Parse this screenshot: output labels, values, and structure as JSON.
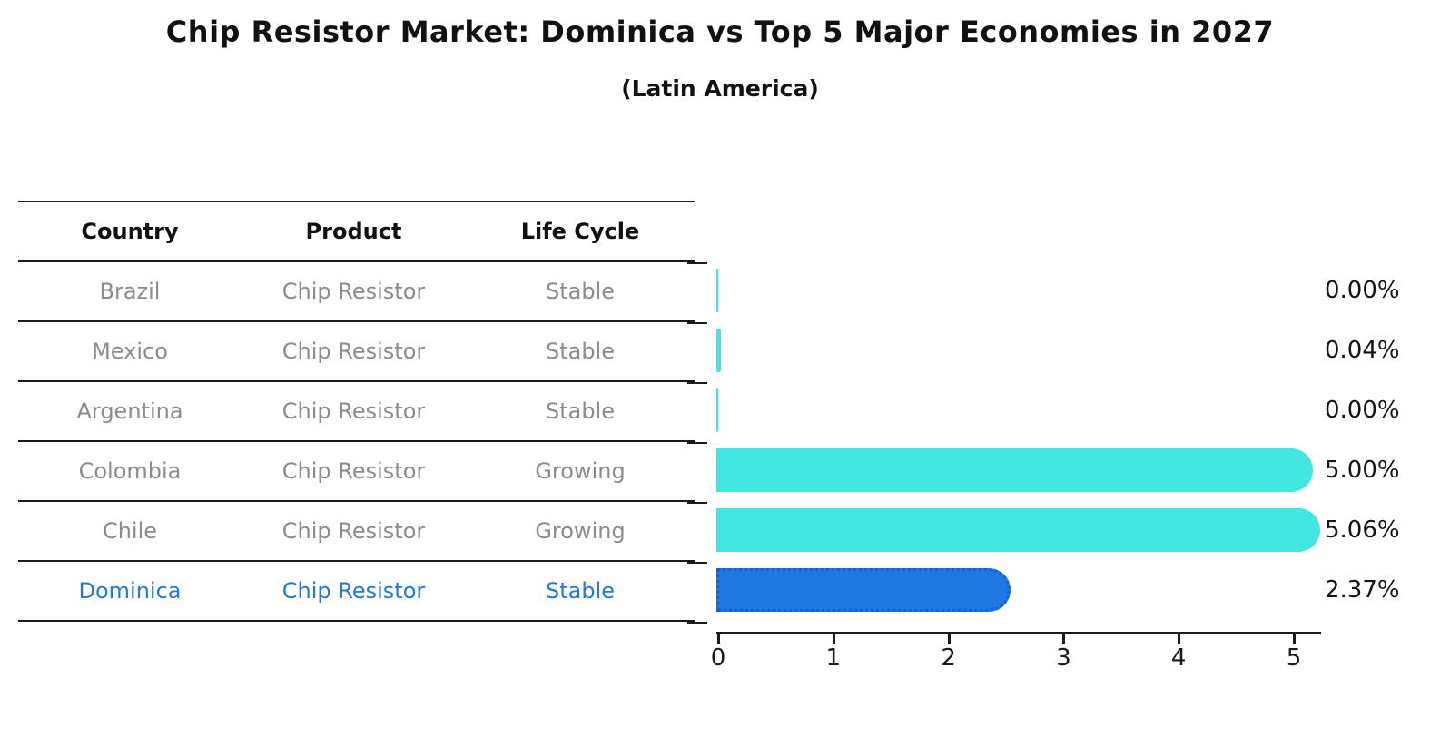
{
  "title": "Chip Resistor Market: Dominica vs Top 5 Major Economies in 2027",
  "subtitle": "(Latin America)",
  "table": {
    "headers": [
      "Country",
      "Product",
      "Life Cycle"
    ],
    "rows": [
      {
        "country": "Brazil",
        "product": "Chip Resistor",
        "life_cycle": "Stable",
        "value_label": "0.00%"
      },
      {
        "country": "Mexico",
        "product": "Chip Resistor",
        "life_cycle": "Stable",
        "value_label": "0.04%"
      },
      {
        "country": "Argentina",
        "product": "Chip Resistor",
        "life_cycle": "Stable",
        "value_label": "0.00%"
      },
      {
        "country": "Colombia",
        "product": "Chip Resistor",
        "life_cycle": "Growing",
        "value_label": "5.00%"
      },
      {
        "country": "Chile",
        "product": "Chip Resistor",
        "life_cycle": "Growing",
        "value_label": "5.06%"
      },
      {
        "country": "Dominica",
        "product": "Chip Resistor",
        "life_cycle": "Stable",
        "value_label": "2.37%"
      }
    ],
    "highlight_row_index": 5
  },
  "chart_data": {
    "type": "bar",
    "orientation": "horizontal",
    "categories": [
      "Brazil",
      "Mexico",
      "Argentina",
      "Colombia",
      "Chile",
      "Dominica"
    ],
    "values": [
      0.0,
      0.04,
      0.0,
      5.0,
      5.06,
      2.37
    ],
    "value_labels": [
      "0.00%",
      "0.04%",
      "0.00%",
      "5.00%",
      "5.06%",
      "2.37%"
    ],
    "title": "Chip Resistor Market: Dominica vs Top 5 Major Economies in 2027 (Latin America)",
    "xlabel": "",
    "ylabel": "",
    "xlim": [
      0,
      5.28
    ],
    "x_ticks": [
      "0",
      "1",
      "2",
      "3",
      "4",
      "5"
    ],
    "grid": false,
    "legend": false,
    "highlight_category": "Dominica",
    "highlight_index": 5,
    "colors": {
      "default_bar": "#41E6E1",
      "highlight_bar": "#1F78E1",
      "highlight_border": "#1560CE",
      "highlight_text": "#2577D8",
      "table_text": "#8c8c8c",
      "header_text": "#111111",
      "axis": "#1a1a1a"
    }
  }
}
